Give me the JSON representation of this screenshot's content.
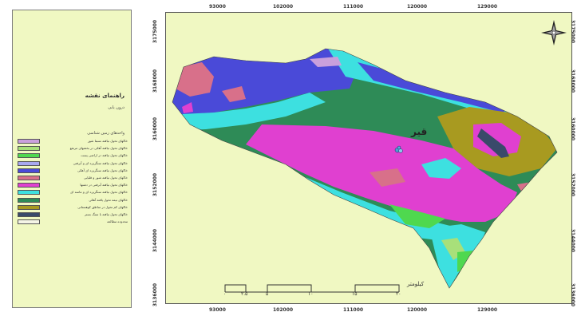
{
  "colors": {
    "background": "#f0f8c2",
    "frame": "#555555"
  },
  "top_ticks": [
    "93000",
    "102000",
    "111000",
    "120000",
    "129000"
  ],
  "bottom_ticks": [
    "93000",
    "102000",
    "111000",
    "120000",
    "129000"
  ],
  "left_ticks": [
    "3175000",
    "3168000",
    "3160000",
    "3152000",
    "3144000",
    "3136000"
  ],
  "right_ticks": [
    "3175000",
    "3168000",
    "3160000",
    "3152000",
    "3144000",
    "3136000"
  ],
  "city_label": "قیر",
  "legend": {
    "title": "راهنمای نقشه",
    "subtitle": "درون یابی",
    "units": "واحدهای زمین شناسی",
    "items": [
      {
        "color": "#c9a0dc",
        "label": "خاکهای تحول نیافته نسبتا شور"
      },
      {
        "color": "#a8e07a",
        "label": "خاکهای تحول نیافته آهکی در بخشهای مرتفع"
      },
      {
        "color": "#4fd84f",
        "label": "خاکهای تحول نیافته در اراضی پست"
      },
      {
        "color": "#a8a8f0",
        "label": "خاکهای تحول نیافته سنگریزه ای و آبرفتی"
      },
      {
        "color": "#4a4ad8",
        "label": "خاکهای تحول نیافته سنگریزه ای آهکی"
      },
      {
        "color": "#d8708a",
        "label": "خاکهای تحول نیافته شور و قلیایی"
      },
      {
        "color": "#e040d0",
        "label": "خاکهای تحول نیافته آبرفتی در دشتها"
      },
      {
        "color": "#3de0e0",
        "label": "خاکهای تحول نیافته سنگریزه ای و ماسه ای"
      },
      {
        "color": "#2e8b57",
        "label": "خاکهای نیمه تحول یافته آهکی"
      },
      {
        "color": "#a89a20",
        "label": "خاکهای کم تحول در مناطق کوهستانی"
      },
      {
        "color": "#3a4a6a",
        "label": "خاکهای تحول نیافته با سنگ بستر"
      },
      {
        "color": "#f5f5e6",
        "label": "محدوده مطالعه"
      }
    ]
  },
  "scale": {
    "title": "کیلومتر",
    "labels": [
      "۰",
      "۲.۵",
      "۵",
      "۱۰",
      "۱۵",
      "۲۰"
    ]
  }
}
